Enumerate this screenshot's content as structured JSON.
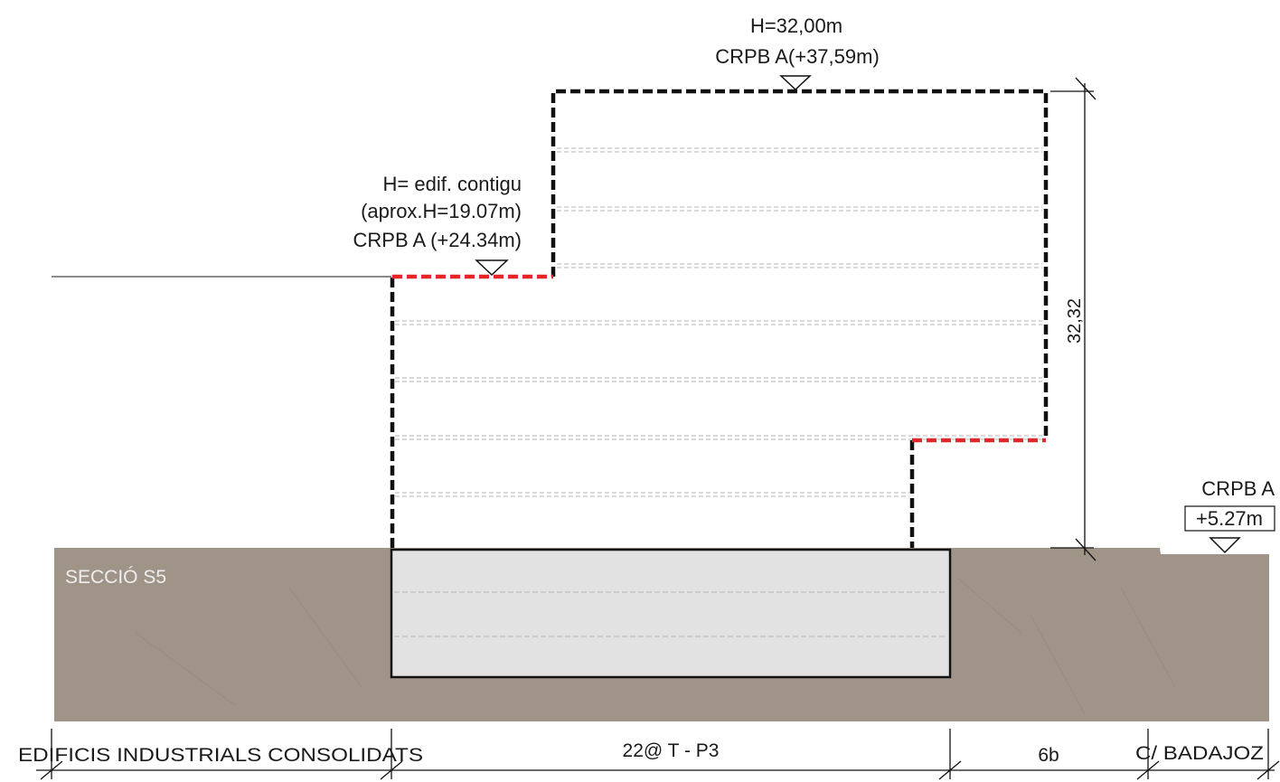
{
  "section": {
    "title": "SECCIÓ S5"
  },
  "levels": {
    "top": {
      "height": "H=32,00m",
      "crpb": "CRPB A(+37,59m)"
    },
    "contiguous": {
      "line1": "H= edif. contigu",
      "line2": "(aprox.H=19.07m)",
      "line3": "CRPB A (+24.34m)"
    },
    "street": {
      "crpb": "CRPB A",
      "elevation": "+5.27m"
    }
  },
  "dimensions": {
    "vertical": "32,32"
  },
  "zones": [
    {
      "label": "EDIFICIS INDUSTRIALS CONSOLIDATS"
    },
    {
      "label": "22@ T - P3"
    },
    {
      "label": "6b"
    },
    {
      "label": "C/ BADAJOZ"
    }
  ],
  "colors": {
    "ground": "#a09489",
    "basement": "#e2e2e2",
    "outline": "#111111",
    "setback_line": "#e0282a",
    "floor_line": "#b5b5b5"
  }
}
